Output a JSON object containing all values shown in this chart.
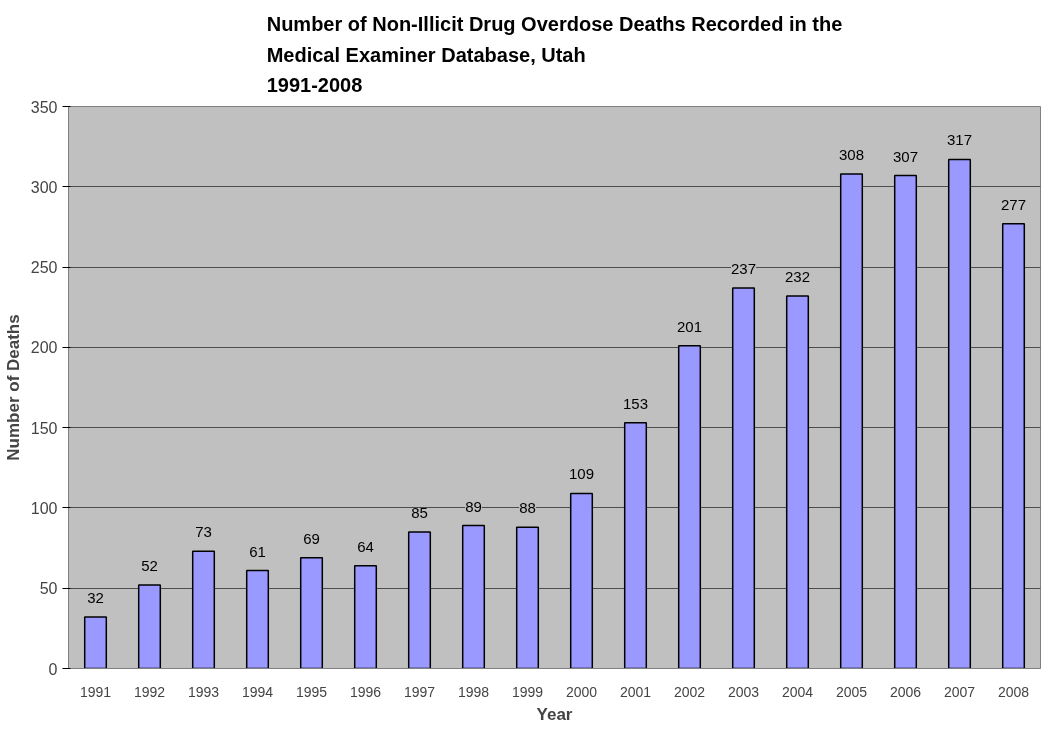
{
  "chart_data": {
    "type": "bar",
    "title": "Number of Non-Illicit Drug Overdose Deaths Recorded in the\nMedical Examiner Database, Utah\n1991-2008",
    "xlabel": "Year",
    "ylabel": "Number of Deaths",
    "categories": [
      "1991",
      "1992",
      "1993",
      "1994",
      "1995",
      "1996",
      "1997",
      "1998",
      "1999",
      "2000",
      "2001",
      "2002",
      "2003",
      "2004",
      "2005",
      "2006",
      "2007",
      "2008"
    ],
    "values": [
      32,
      52,
      73,
      61,
      69,
      64,
      85,
      89,
      88,
      109,
      153,
      201,
      237,
      232,
      308,
      307,
      317,
      277
    ],
    "color": "#9999ff",
    "ylim": [
      0,
      350
    ],
    "yticks": [
      0,
      50,
      100,
      150,
      200,
      250,
      300,
      350
    ],
    "grid": "y",
    "data_labels": true
  }
}
